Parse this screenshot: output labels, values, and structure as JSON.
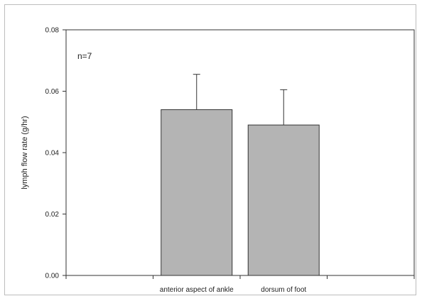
{
  "chart_data": {
    "type": "bar",
    "title": "",
    "xlabel": "",
    "ylabel": "lymph flow rate (g/hr)",
    "annotation": "n=7",
    "categories": [
      "anterior aspect of ankle",
      "dorsum of foot"
    ],
    "values": [
      0.054,
      0.049
    ],
    "error_upper": [
      0.0115,
      0.0115
    ],
    "ylim": [
      0,
      0.08
    ],
    "yticks": [
      "0.00",
      "0.02",
      "0.04",
      "0.06",
      "0.08"
    ],
    "bar_color": "#b4b4b4",
    "grid": false,
    "legend": "none"
  }
}
